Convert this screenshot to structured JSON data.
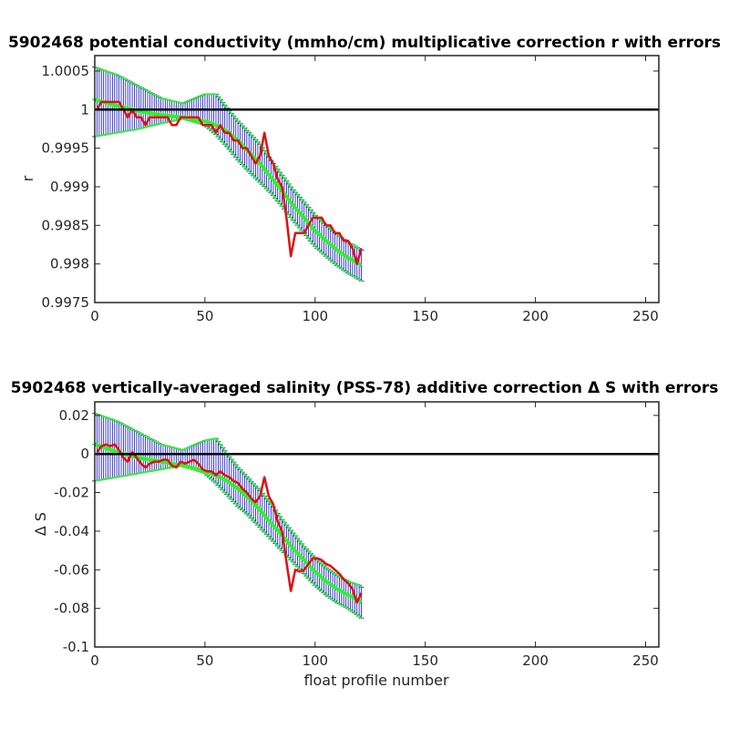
{
  "figure": {
    "background": "#ffffff"
  },
  "colors": {
    "err_bars": "#1010c8",
    "fit": "#33ee33",
    "data": "#dd1111",
    "reference": "#000000",
    "axes": "#262626"
  },
  "chart_data": [
    {
      "type": "line",
      "title": "5902468 potential conductivity (mmho/cm) multiplicative correction r with errors",
      "xlabel": "",
      "ylabel": "r",
      "xlim": [
        0,
        256
      ],
      "ylim": [
        0.9975,
        1.0007
      ],
      "xticks": [
        "0",
        "50",
        "100",
        "150",
        "200",
        "250"
      ],
      "yticks": [
        "0.9975",
        "0.998",
        "0.9985",
        "0.999",
        "0.9995",
        "1",
        "1.0005"
      ],
      "grid": false,
      "reference_line": 1.0,
      "series": [
        {
          "role": "data",
          "x": [
            1,
            3,
            5,
            7,
            9,
            11,
            13,
            15,
            17,
            19,
            21,
            23,
            25,
            27,
            29,
            31,
            33,
            35,
            37,
            39,
            41,
            43,
            45,
            47,
            49,
            51,
            53,
            55,
            57,
            59,
            61,
            63,
            65,
            67,
            69,
            71,
            73,
            75,
            77,
            79,
            81,
            83,
            85,
            87,
            89,
            91,
            93,
            95,
            97,
            99,
            101,
            103,
            105,
            107,
            109,
            111,
            113,
            115,
            117,
            119,
            121
          ],
          "y": [
            1.0,
            1.0001,
            1.0001,
            1.0001,
            1.0001,
            1.0001,
            1.0,
            0.9999,
            1.0,
            0.9999,
            0.9999,
            0.9998,
            0.9999,
            0.9999,
            0.9999,
            0.9999,
            0.9999,
            0.9998,
            0.9998,
            0.9999,
            0.9999,
            0.9999,
            0.9999,
            0.9999,
            0.9998,
            0.9998,
            0.9998,
            0.9997,
            0.9998,
            0.9997,
            0.9997,
            0.9996,
            0.9996,
            0.9995,
            0.9995,
            0.9994,
            0.9993,
            0.9994,
            0.9997,
            0.9994,
            0.9993,
            0.9991,
            0.999,
            0.9986,
            0.9981,
            0.9984,
            0.9984,
            0.9984,
            0.9985,
            0.9986,
            0.9986,
            0.9986,
            0.9985,
            0.9985,
            0.9984,
            0.9984,
            0.9983,
            0.9983,
            0.9982,
            0.998,
            0.9982
          ]
        },
        {
          "role": "fit",
          "x": [
            0,
            10,
            20,
            30,
            40,
            50,
            55,
            60,
            65,
            70,
            75,
            80,
            85,
            90,
            95,
            100,
            105,
            110,
            115,
            120,
            121
          ],
          "y": [
            1.00013,
            1.00005,
            0.99998,
            0.99993,
            0.9999,
            0.99985,
            0.9998,
            0.99972,
            0.9996,
            0.99945,
            0.9993,
            0.99912,
            0.99895,
            0.99876,
            0.9986,
            0.99843,
            0.9983,
            0.99818,
            0.99808,
            0.998,
            0.99798
          ]
        },
        {
          "role": "errors",
          "x": [
            0,
            10,
            20,
            30,
            40,
            50,
            55,
            60,
            65,
            70,
            75,
            80,
            85,
            90,
            95,
            100,
            105,
            110,
            115,
            120,
            121
          ],
          "lower": [
            0.99965,
            0.9997,
            0.99975,
            0.99982,
            0.99988,
            0.9998,
            0.99968,
            0.99952,
            0.99935,
            0.9992,
            0.99906,
            0.99892,
            0.99875,
            0.99857,
            0.9984,
            0.99823,
            0.9981,
            0.99798,
            0.99788,
            0.9978,
            0.99778
          ],
          "upper": [
            1.00055,
            1.00045,
            1.0003,
            1.00015,
            1.00008,
            1.0002,
            1.0002,
            1.00002,
            0.99985,
            0.9997,
            0.99955,
            0.99934,
            0.99915,
            0.99896,
            0.9988,
            0.99863,
            0.9985,
            0.99838,
            0.99828,
            0.9982,
            0.99818
          ]
        }
      ]
    },
    {
      "type": "line",
      "title": "5902468 vertically-averaged salinity (PSS-78) additive correction Δ S with errors",
      "xlabel": "float profile number",
      "ylabel": "Δ S",
      "xlim": [
        0,
        256
      ],
      "ylim": [
        -0.1,
        0.027
      ],
      "xticks": [
        "0",
        "50",
        "100",
        "150",
        "200",
        "250"
      ],
      "yticks": [
        "-0.1",
        "-0.08",
        "-0.06",
        "-0.04",
        "-0.02",
        "0",
        "0.02"
      ],
      "grid": false,
      "reference_line": 0,
      "series": [
        {
          "role": "data",
          "x": [
            1,
            3,
            5,
            7,
            9,
            11,
            13,
            15,
            17,
            19,
            21,
            23,
            25,
            27,
            29,
            31,
            33,
            35,
            37,
            39,
            41,
            43,
            45,
            47,
            49,
            51,
            53,
            55,
            57,
            59,
            61,
            63,
            65,
            67,
            69,
            71,
            73,
            75,
            77,
            79,
            81,
            83,
            85,
            87,
            89,
            91,
            93,
            95,
            97,
            99,
            101,
            103,
            105,
            107,
            109,
            111,
            113,
            115,
            117,
            119,
            121
          ],
          "y": [
            0.001,
            0.004,
            0.005,
            0.004,
            0.005,
            0.002,
            -0.002,
            -0.004,
            0.001,
            -0.002,
            -0.005,
            -0.007,
            -0.005,
            -0.004,
            -0.004,
            -0.003,
            -0.003,
            -0.006,
            -0.007,
            -0.004,
            -0.005,
            -0.004,
            -0.003,
            -0.005,
            -0.008,
            -0.009,
            -0.009,
            -0.011,
            -0.009,
            -0.011,
            -0.012,
            -0.014,
            -0.015,
            -0.018,
            -0.02,
            -0.023,
            -0.025,
            -0.022,
            -0.012,
            -0.022,
            -0.026,
            -0.035,
            -0.04,
            -0.056,
            -0.071,
            -0.06,
            -0.061,
            -0.06,
            -0.057,
            -0.054,
            -0.054,
            -0.055,
            -0.057,
            -0.058,
            -0.06,
            -0.062,
            -0.065,
            -0.067,
            -0.07,
            -0.077,
            -0.072
          ]
        },
        {
          "role": "fit",
          "x": [
            0,
            10,
            20,
            30,
            40,
            50,
            55,
            60,
            65,
            70,
            75,
            80,
            85,
            90,
            95,
            100,
            105,
            110,
            115,
            120,
            121
          ],
          "y": [
            0.005,
            0.001,
            -0.002,
            -0.004,
            -0.006,
            -0.009,
            -0.011,
            -0.014,
            -0.018,
            -0.023,
            -0.029,
            -0.036,
            -0.042,
            -0.049,
            -0.055,
            -0.061,
            -0.066,
            -0.07,
            -0.073,
            -0.076,
            -0.077
          ]
        },
        {
          "role": "errors",
          "x": [
            0,
            10,
            20,
            30,
            40,
            50,
            55,
            60,
            65,
            70,
            75,
            80,
            85,
            90,
            95,
            100,
            105,
            110,
            115,
            120,
            121
          ],
          "lower": [
            -0.014,
            -0.012,
            -0.01,
            -0.008,
            -0.006,
            -0.01,
            -0.015,
            -0.021,
            -0.027,
            -0.032,
            -0.038,
            -0.044,
            -0.05,
            -0.056,
            -0.062,
            -0.068,
            -0.073,
            -0.077,
            -0.08,
            -0.084,
            -0.085
          ],
          "upper": [
            0.021,
            0.017,
            0.011,
            0.005,
            0.002,
            0.007,
            0.008,
            0.0,
            -0.007,
            -0.013,
            -0.019,
            -0.026,
            -0.034,
            -0.041,
            -0.048,
            -0.054,
            -0.059,
            -0.063,
            -0.066,
            -0.068,
            -0.069
          ]
        }
      ]
    }
  ]
}
